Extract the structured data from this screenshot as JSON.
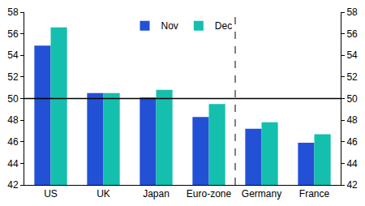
{
  "chart_data": {
    "type": "bar",
    "categories": [
      "US",
      "UK",
      "Japan",
      "Euro-zone",
      "Germany",
      "France"
    ],
    "series": [
      {
        "name": "Nov",
        "color": "#2251d6",
        "values": [
          54.9,
          50.5,
          50.1,
          48.3,
          47.2,
          45.9
        ]
      },
      {
        "name": "Dec",
        "color": "#14bfae",
        "values": [
          56.6,
          50.5,
          50.8,
          49.5,
          47.8,
          46.7
        ]
      }
    ],
    "ylim": [
      42,
      58
    ],
    "yticks": [
      42,
      44,
      46,
      48,
      50,
      52,
      54,
      56,
      58
    ],
    "reference_line": 50,
    "grid": false,
    "legend": "top"
  }
}
